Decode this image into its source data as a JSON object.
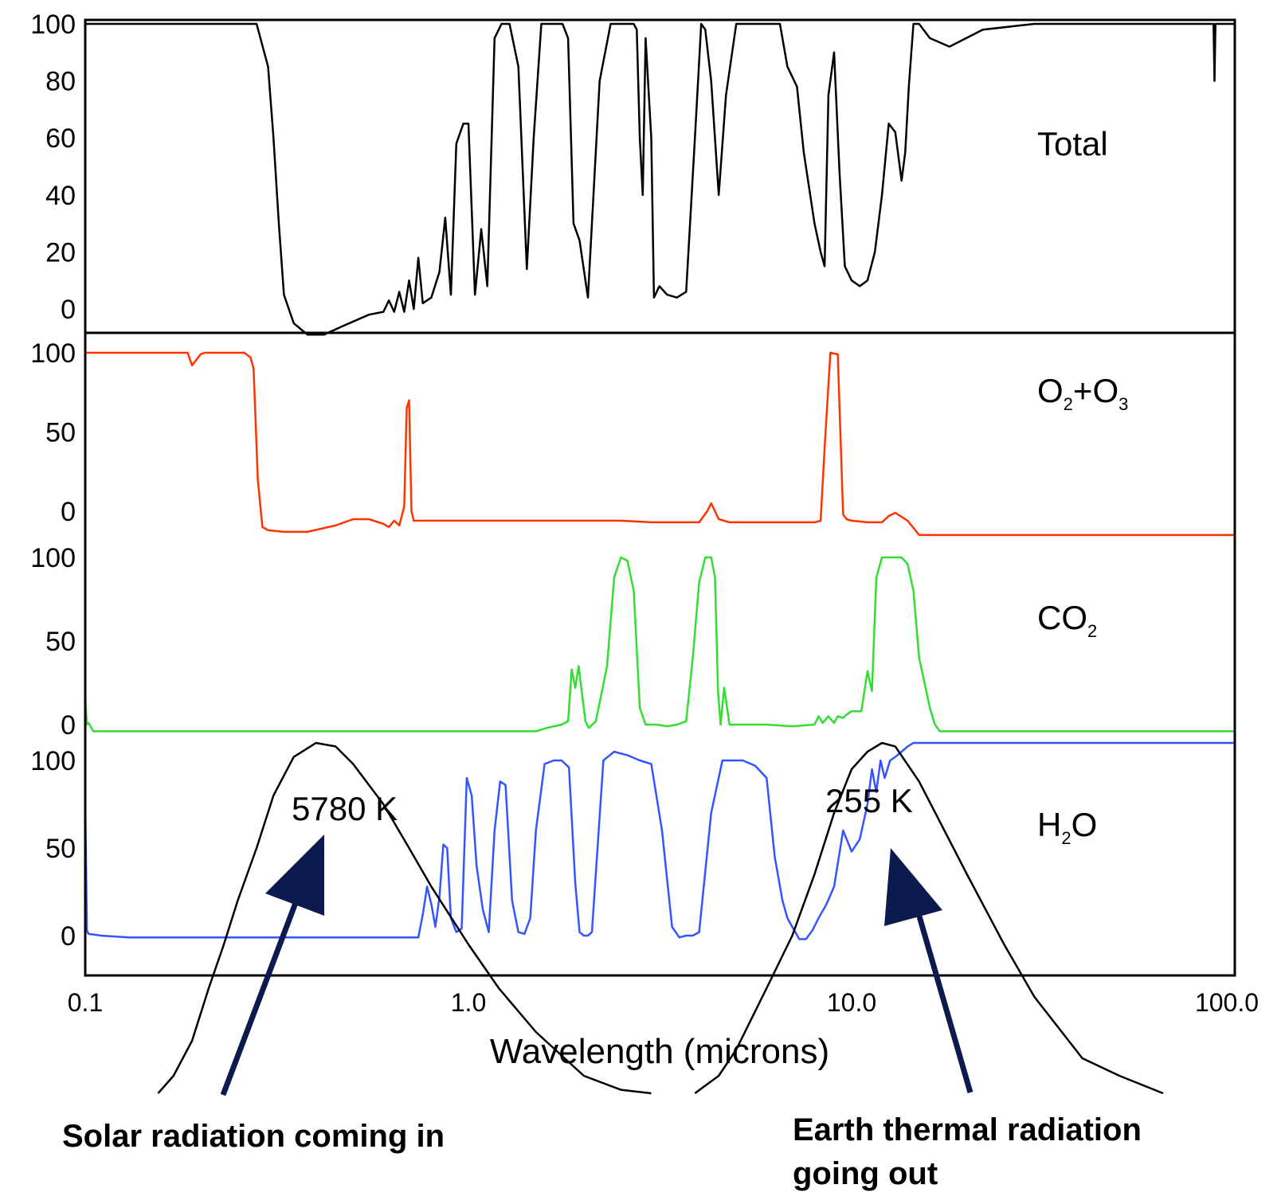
{
  "chart_data": {
    "type": "line",
    "xlabel": "Wavelength (microns)",
    "xscale": "log",
    "xlim": [
      0.1,
      100.0
    ],
    "x_tick_labels": [
      "0.1",
      "1.0",
      "10.0",
      "100.0"
    ],
    "x_ticks": [
      0.1,
      1.0,
      10.0,
      100.0
    ],
    "grid": false,
    "panels": [
      {
        "label": "Total",
        "ylim": [
          -10,
          108
        ],
        "y_tick_labels": [
          "100",
          "80",
          "60",
          "40",
          "20",
          "0"
        ],
        "y_ticks": [
          100,
          80,
          60,
          40,
          20,
          0
        ],
        "color": "#000000",
        "series": {
          "x": [
            0.1,
            0.28,
            0.3,
            0.31,
            0.32,
            0.33,
            0.35,
            0.38,
            0.42,
            0.47,
            0.55,
            0.6,
            0.62,
            0.64,
            0.66,
            0.68,
            0.7,
            0.72,
            0.74,
            0.76,
            0.8,
            0.84,
            0.87,
            0.9,
            0.93,
            0.97,
            1.0,
            1.04,
            1.08,
            1.12,
            1.17,
            1.22,
            1.28,
            1.35,
            1.42,
            1.48,
            1.55,
            1.62,
            1.7,
            1.76,
            1.82,
            1.88,
            1.95,
            2.05,
            2.2,
            2.35,
            2.5,
            2.6,
            2.7,
            2.75,
            2.8,
            2.85,
            2.9,
            3.0,
            3.05,
            3.15,
            3.3,
            3.5,
            3.7,
            3.9,
            4.05,
            4.15,
            4.3,
            4.5,
            4.7,
            5.0,
            5.5,
            6.0,
            6.5,
            6.8,
            7.2,
            7.5,
            8.0,
            8.3,
            8.5,
            8.7,
            9.0,
            9.3,
            9.6,
            10.0,
            10.5,
            11.0,
            11.5,
            12.0,
            12.5,
            13.0,
            13.5,
            13.8,
            14.1,
            14.5,
            15.0,
            16.0,
            18.0,
            22.0,
            30.0,
            50.0,
            85.0,
            88.0,
            88.5,
            89.0,
            100.0
          ],
          "values": [
            100,
            100,
            85,
            60,
            30,
            5,
            -5,
            -9,
            -9,
            -6,
            -2,
            -1,
            3,
            -1,
            6,
            -1,
            10,
            0,
            18,
            2,
            4,
            13,
            32,
            5,
            58,
            65,
            65,
            5,
            28,
            8,
            95,
            100,
            100,
            85,
            14,
            60,
            100,
            100,
            100,
            100,
            95,
            30,
            24,
            4,
            80,
            100,
            100,
            100,
            100,
            98,
            60,
            40,
            95,
            60,
            4,
            8,
            5,
            4,
            6,
            60,
            100,
            98,
            80,
            40,
            75,
            100,
            100,
            100,
            100,
            85,
            78,
            55,
            30,
            20,
            15,
            75,
            90,
            48,
            15,
            10,
            8,
            10,
            20,
            40,
            65,
            62,
            45,
            55,
            78,
            100,
            100,
            95,
            92,
            98,
            100,
            100,
            100,
            100,
            80,
            100,
            100
          ]
        }
      },
      {
        "label": "O2+O3",
        "label_main_1": "O",
        "label_sub_1": "2",
        "label_plus": "+O",
        "label_sub_2": "3",
        "ylim": [
          -15,
          108
        ],
        "y_tick_labels": [
          "100",
          "50",
          "0"
        ],
        "y_ticks": [
          100,
          50,
          0
        ],
        "color": "#ff3300",
        "series": {
          "x": [
            0.1,
            0.185,
            0.19,
            0.2,
            0.205,
            0.26,
            0.27,
            0.275,
            0.278,
            0.282,
            0.29,
            0.3,
            0.33,
            0.38,
            0.45,
            0.5,
            0.55,
            0.6,
            0.62,
            0.64,
            0.66,
            0.68,
            0.69,
            0.7,
            0.71,
            0.72,
            0.75,
            1.0,
            2.5,
            3.0,
            4.0,
            4.2,
            4.3,
            4.5,
            4.8,
            6.0,
            8.0,
            8.3,
            8.5,
            8.8,
            9.2,
            9.5,
            9.7,
            10.0,
            11.0,
            12.0,
            12.5,
            13.0,
            14.0,
            15.0,
            20.0,
            100.0
          ],
          "values": [
            100,
            100,
            92,
            99,
            100,
            100,
            97,
            90,
            60,
            20,
            -10,
            -12,
            -13,
            -13,
            -9,
            -5,
            -5,
            -8,
            -10,
            -6,
            -9,
            3,
            65,
            70,
            0,
            -6,
            -6,
            -6,
            -6,
            -7,
            -7,
            0,
            5,
            -5,
            -7,
            -7,
            -7,
            -6,
            40,
            100,
            99,
            -2,
            -5,
            -6,
            -7,
            -7,
            -3,
            -1,
            -6,
            -15,
            -15,
            -15
          ]
        }
      },
      {
        "label": "CO2",
        "label_main": "CO",
        "label_sub": "2",
        "ylim": [
          -4,
          103
        ],
        "y_tick_labels": [
          "100",
          "50",
          "0"
        ],
        "y_ticks": [
          100,
          50,
          0
        ],
        "color": "#33dd33",
        "series": {
          "x": [
            0.1,
            0.101,
            0.102,
            0.105,
            1.5,
            1.6,
            1.75,
            1.82,
            1.86,
            1.9,
            1.94,
            1.98,
            2.02,
            2.06,
            2.15,
            2.3,
            2.4,
            2.5,
            2.6,
            2.7,
            2.8,
            2.9,
            3.1,
            3.3,
            3.5,
            3.7,
            3.85,
            4.0,
            4.15,
            4.3,
            4.4,
            4.48,
            4.55,
            4.65,
            4.8,
            5.2,
            6.0,
            7.0,
            8.0,
            8.2,
            8.4,
            8.7,
            9.0,
            9.2,
            9.5,
            9.7,
            10.0,
            10.6,
            11.0,
            11.3,
            11.6,
            12.0,
            12.5,
            13.0,
            13.5,
            14.0,
            14.5,
            15.0,
            16.0,
            16.5,
            17.0,
            18.0,
            20.0,
            25.0,
            100.0
          ],
          "values": [
            15,
            0,
            1,
            -4,
            -4,
            -2,
            0,
            2,
            33,
            22,
            35,
            18,
            2,
            -2,
            2,
            35,
            88,
            100,
            98,
            80,
            10,
            0,
            0,
            -1,
            0,
            2,
            40,
            85,
            100,
            100,
            88,
            20,
            0,
            22,
            0,
            0,
            0,
            -1,
            0,
            5,
            1,
            5,
            1,
            5,
            4,
            6,
            8,
            8,
            32,
            20,
            88,
            100,
            100,
            100,
            100,
            96,
            80,
            40,
            10,
            0,
            -4,
            -4,
            -4,
            -4,
            -4
          ]
        }
      },
      {
        "label": "H2O",
        "label_main_1": "H",
        "label_sub": "2",
        "label_main_2": "O",
        "ylim": [
          -20,
          105
        ],
        "y_tick_labels": [
          "100",
          "50",
          "0"
        ],
        "y_ticks": [
          100,
          50,
          0
        ],
        "color": "#3355ff",
        "series": {
          "x": [
            0.1,
            0.101,
            0.102,
            0.11,
            0.13,
            0.3,
            0.5,
            0.74,
            0.76,
            0.78,
            0.8,
            0.82,
            0.84,
            0.86,
            0.88,
            0.9,
            0.93,
            0.96,
            0.99,
            1.02,
            1.05,
            1.09,
            1.13,
            1.17,
            1.21,
            1.25,
            1.3,
            1.35,
            1.4,
            1.45,
            1.5,
            1.58,
            1.67,
            1.75,
            1.83,
            1.9,
            1.95,
            2.0,
            2.05,
            2.1,
            2.25,
            2.4,
            2.6,
            2.8,
            3.0,
            3.2,
            3.4,
            3.55,
            3.7,
            3.85,
            4.0,
            4.3,
            4.6,
            4.9,
            5.2,
            5.6,
            6.0,
            6.3,
            6.6,
            6.8,
            7.0,
            7.3,
            7.6,
            7.9,
            8.2,
            8.6,
            9.0,
            9.5,
            10.0,
            10.5,
            11.0,
            11.3,
            11.6,
            11.9,
            12.2,
            12.6,
            13.0,
            13.5,
            14.0,
            14.5,
            15.0,
            15.5,
            16.0,
            16.5,
            17.0,
            17.5,
            18.0,
            20.0,
            50.0,
            100.0
          ],
          "values": [
            76,
            3,
            1,
            0,
            -1,
            -1,
            -1,
            -1,
            12,
            28,
            18,
            5,
            22,
            52,
            50,
            10,
            2,
            4,
            90,
            80,
            40,
            15,
            2,
            60,
            88,
            86,
            20,
            2,
            1,
            10,
            60,
            98,
            100,
            100,
            96,
            30,
            2,
            0,
            0,
            2,
            100,
            105,
            103,
            100,
            98,
            60,
            5,
            -1,
            0,
            0,
            2,
            70,
            100,
            100,
            100,
            97,
            90,
            45,
            20,
            10,
            5,
            -2,
            -2,
            3,
            10,
            18,
            28,
            60,
            48,
            55,
            75,
            95,
            82,
            100,
            90,
            100,
            102,
            105,
            108,
            110,
            110,
            110,
            110,
            110,
            110,
            110,
            110,
            110,
            110,
            110
          ]
        }
      }
    ],
    "overlay": {
      "solar_curve": {
        "label": "5780 K",
        "color": "#000000",
        "x": [
          0.155,
          0.17,
          0.19,
          0.21,
          0.23,
          0.25,
          0.28,
          0.31,
          0.35,
          0.4,
          0.45,
          0.5,
          0.6,
          0.7,
          0.8,
          1.0,
          1.2,
          1.5,
          2.0,
          2.5,
          3.0
        ],
        "values": [
          -90,
          -80,
          -60,
          -30,
          -5,
          20,
          50,
          80,
          102,
          110,
          108,
          98,
          75,
          50,
          28,
          -5,
          -30,
          -55,
          -80,
          -88,
          -90
        ]
      },
      "earth_curve": {
        "label": "255 K",
        "color": "#000000",
        "x": [
          3.9,
          4.5,
          5.0,
          6.0,
          7.0,
          8.0,
          9.0,
          10.0,
          11.0,
          12.0,
          13.0,
          15.0,
          17.0,
          20.0,
          25.0,
          30.0,
          40.0,
          50.0,
          65.0
        ],
        "values": [
          -90,
          -80,
          -65,
          -30,
          0,
          35,
          70,
          95,
          105,
          110,
          108,
          88,
          65,
          35,
          -5,
          -35,
          -70,
          -80,
          -90
        ]
      }
    },
    "annotations": {
      "solar_caption": "Solar radiation coming in",
      "earth_caption_line1": "Earth thermal radiation",
      "earth_caption_line2": "going out"
    }
  },
  "colors": {
    "total": "#000000",
    "o2o3": "#ff3300",
    "co2": "#33dd33",
    "h2o": "#3355ff",
    "arrow": "#0d1a4d"
  }
}
